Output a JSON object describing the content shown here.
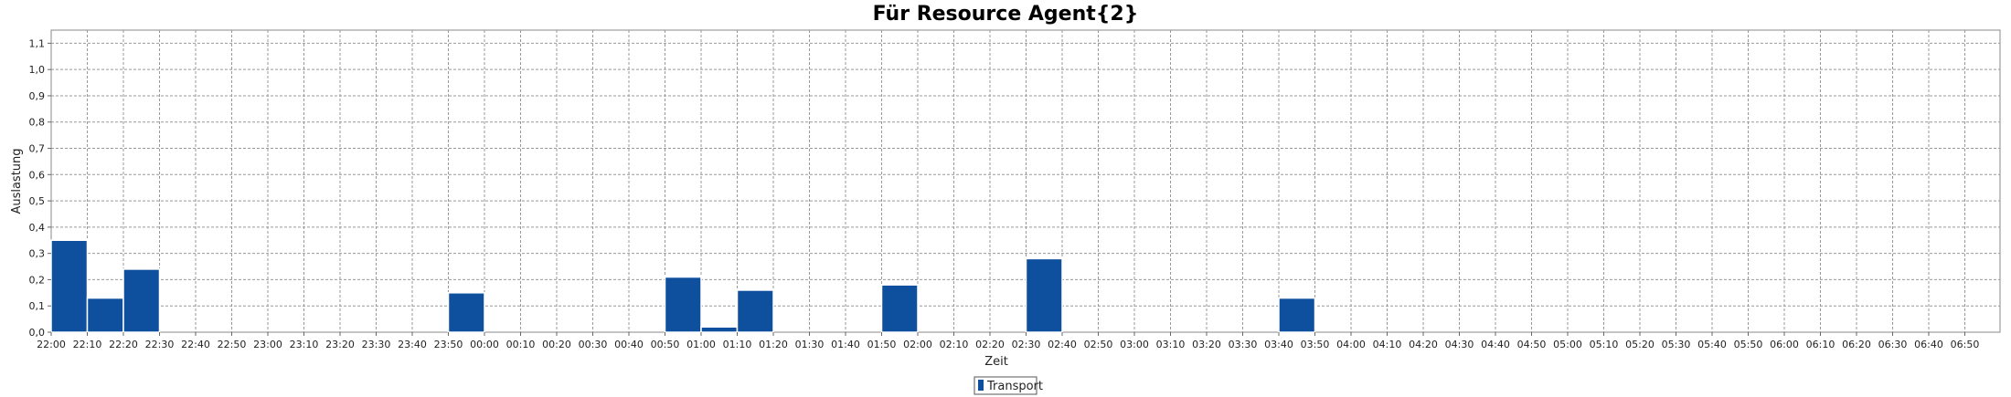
{
  "chart_data": {
    "type": "bar",
    "title": "Für Resource Agent{2}",
    "xlabel": "Zeit",
    "ylabel": "Auslastung",
    "ylim": [
      0,
      1.15
    ],
    "y_ticks": [
      "0,0",
      "0,1",
      "0,2",
      "0,3",
      "0,4",
      "0,5",
      "0,6",
      "0,7",
      "0,8",
      "0,9",
      "1,0",
      "1,1"
    ],
    "x_ticks": [
      "22:00",
      "22:10",
      "22:20",
      "22:30",
      "22:40",
      "22:50",
      "23:00",
      "23:10",
      "23:20",
      "23:30",
      "23:40",
      "23:50",
      "00:00",
      "00:10",
      "00:20",
      "00:30",
      "00:40",
      "00:50",
      "01:00",
      "01:10",
      "01:20",
      "01:30",
      "01:40",
      "01:50",
      "02:00",
      "02:10",
      "02:20",
      "02:30",
      "02:40",
      "02:50",
      "03:00",
      "03:10",
      "03:20",
      "03:30",
      "03:40",
      "03:50",
      "04:00",
      "04:10",
      "04:20",
      "04:30",
      "04:40",
      "04:50",
      "05:00",
      "05:10",
      "05:20",
      "05:30",
      "05:40",
      "05:50",
      "06:00",
      "06:10",
      "06:20",
      "06:30",
      "06:40",
      "06:50"
    ],
    "grid": true,
    "legend_position": "bottom-center",
    "series": [
      {
        "name": "Transport",
        "color": "#0e4f9e",
        "bars": [
          {
            "start": "22:00",
            "end": "22:10",
            "value": 0.35
          },
          {
            "start": "22:10",
            "end": "22:20",
            "value": 0.13
          },
          {
            "start": "22:20",
            "end": "22:30",
            "value": 0.24
          },
          {
            "start": "23:50",
            "end": "00:00",
            "value": 0.15
          },
          {
            "start": "00:50",
            "end": "01:00",
            "value": 0.21
          },
          {
            "start": "01:00",
            "end": "01:10",
            "value": 0.02
          },
          {
            "start": "01:10",
            "end": "01:20",
            "value": 0.16
          },
          {
            "start": "01:50",
            "end": "02:00",
            "value": 0.18
          },
          {
            "start": "02:30",
            "end": "02:40",
            "value": 0.28
          },
          {
            "start": "03:40",
            "end": "03:50",
            "value": 0.13
          }
        ]
      }
    ]
  }
}
